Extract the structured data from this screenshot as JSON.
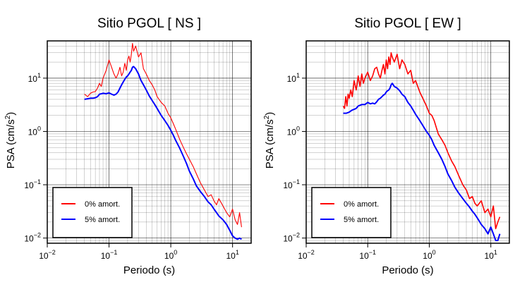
{
  "chart_data": [
    {
      "type": "line",
      "title": "Sitio PGOL [ NS ]",
      "xlabel": "Periodo (s)",
      "ylabel_main": "PSA (cm/s",
      "ylabel_sup": "2",
      "ylabel_end": ")",
      "x_scale": "log",
      "y_scale": "log",
      "xlim": [
        0.01,
        20
      ],
      "ylim": [
        0.008,
        50
      ],
      "grid": true,
      "legend_position": "bottom-left",
      "series": [
        {
          "name": "0% amort.",
          "color": "#ff0000",
          "x": [
            0.04,
            0.045,
            0.05,
            0.055,
            0.06,
            0.065,
            0.07,
            0.075,
            0.08,
            0.09,
            0.1,
            0.11,
            0.12,
            0.13,
            0.14,
            0.15,
            0.16,
            0.17,
            0.18,
            0.19,
            0.2,
            0.21,
            0.22,
            0.23,
            0.24,
            0.25,
            0.27,
            0.3,
            0.33,
            0.36,
            0.4,
            0.45,
            0.5,
            0.55,
            0.6,
            0.7,
            0.8,
            0.9,
            1.0,
            1.1,
            1.2,
            1.4,
            1.6,
            1.8,
            2.0,
            2.3,
            2.6,
            3.0,
            3.5,
            4.0,
            4.5,
            5.0,
            5.5,
            6.0,
            7.0,
            8.0,
            9.0,
            10,
            11,
            12,
            13,
            14
          ],
          "y": [
            5,
            4.5,
            5.2,
            5.5,
            5.6,
            6.5,
            8,
            7,
            10,
            14,
            22,
            16,
            12,
            10,
            12,
            16,
            11,
            13,
            19,
            14,
            22,
            26,
            20,
            28,
            45,
            32,
            40,
            25,
            30,
            15,
            12,
            9,
            7.5,
            6,
            4.5,
            3.5,
            3,
            2.2,
            1.8,
            1.4,
            1.1,
            0.7,
            0.5,
            0.38,
            0.3,
            0.22,
            0.16,
            0.11,
            0.08,
            0.06,
            0.065,
            0.05,
            0.042,
            0.055,
            0.04,
            0.03,
            0.025,
            0.035,
            0.022,
            0.018,
            0.03,
            0.016
          ]
        },
        {
          "name": "5% amort.",
          "color": "#0000ff",
          "x": [
            0.04,
            0.045,
            0.05,
            0.055,
            0.06,
            0.065,
            0.07,
            0.075,
            0.08,
            0.09,
            0.1,
            0.11,
            0.12,
            0.13,
            0.14,
            0.15,
            0.16,
            0.17,
            0.18,
            0.19,
            0.2,
            0.21,
            0.22,
            0.23,
            0.24,
            0.25,
            0.27,
            0.3,
            0.33,
            0.36,
            0.4,
            0.45,
            0.5,
            0.55,
            0.6,
            0.7,
            0.8,
            0.9,
            1.0,
            1.1,
            1.2,
            1.4,
            1.6,
            1.8,
            2.0,
            2.3,
            2.6,
            3.0,
            3.5,
            4.0,
            4.5,
            5.0,
            5.5,
            6.0,
            7.0,
            8.0,
            9.0,
            10,
            11,
            12,
            13,
            14
          ],
          "y": [
            4,
            4.1,
            4.2,
            4.2,
            4.3,
            4.5,
            5,
            5.1,
            5.2,
            5.1,
            5.3,
            5,
            4.8,
            5,
            5.5,
            6.5,
            7.5,
            8.5,
            9.5,
            10.5,
            11,
            12,
            13,
            14,
            16,
            16.5,
            15,
            12,
            9,
            7.5,
            6,
            4.6,
            3.8,
            3.2,
            2.7,
            2,
            1.6,
            1.3,
            1.05,
            0.85,
            0.68,
            0.48,
            0.34,
            0.25,
            0.18,
            0.13,
            0.095,
            0.075,
            0.06,
            0.048,
            0.042,
            0.035,
            0.03,
            0.026,
            0.022,
            0.018,
            0.014,
            0.011,
            0.01,
            0.0095,
            0.01,
            0.0095
          ]
        }
      ]
    },
    {
      "type": "line",
      "title": "Sitio PGOL [ EW ]",
      "xlabel": "Periodo (s)",
      "ylabel_main": "PSA (cm/s",
      "ylabel_sup": "2",
      "ylabel_end": ")",
      "x_scale": "log",
      "y_scale": "log",
      "xlim": [
        0.01,
        20
      ],
      "ylim": [
        0.008,
        50
      ],
      "grid": true,
      "legend_position": "bottom-left",
      "series": [
        {
          "name": "0% amort.",
          "color": "#ff0000",
          "x": [
            0.04,
            0.042,
            0.044,
            0.046,
            0.048,
            0.05,
            0.053,
            0.056,
            0.06,
            0.065,
            0.07,
            0.075,
            0.08,
            0.085,
            0.09,
            0.1,
            0.11,
            0.12,
            0.13,
            0.14,
            0.15,
            0.16,
            0.17,
            0.18,
            0.19,
            0.2,
            0.21,
            0.22,
            0.23,
            0.24,
            0.25,
            0.27,
            0.3,
            0.33,
            0.36,
            0.4,
            0.45,
            0.5,
            0.55,
            0.6,
            0.7,
            0.8,
            0.9,
            1.0,
            1.1,
            1.2,
            1.4,
            1.6,
            1.8,
            2.0,
            2.3,
            2.6,
            3.0,
            3.5,
            4.0,
            4.5,
            5.0,
            5.5,
            6.0,
            7.0,
            8.0,
            9.0,
            10,
            11,
            12,
            13,
            14
          ],
          "y": [
            3,
            2.7,
            4.5,
            3,
            5,
            4.2,
            6,
            4.5,
            9,
            6,
            11,
            7,
            12,
            8,
            10,
            13,
            9,
            11,
            15,
            16,
            12,
            10,
            14,
            18,
            12,
            22,
            15,
            25,
            18,
            30,
            25,
            20,
            28,
            15,
            22,
            18,
            12,
            14,
            8,
            9,
            5.5,
            4,
            3,
            2.2,
            2,
            1.6,
            0.9,
            0.7,
            0.55,
            0.4,
            0.28,
            0.22,
            0.15,
            0.1,
            0.08,
            0.055,
            0.06,
            0.045,
            0.04,
            0.05,
            0.03,
            0.035,
            0.025,
            0.04,
            0.015,
            0.02,
            0.025
          ]
        },
        {
          "name": "5% amort.",
          "color": "#0000ff",
          "x": [
            0.04,
            0.045,
            0.05,
            0.055,
            0.06,
            0.065,
            0.07,
            0.075,
            0.08,
            0.09,
            0.1,
            0.11,
            0.12,
            0.13,
            0.14,
            0.15,
            0.16,
            0.17,
            0.18,
            0.19,
            0.2,
            0.21,
            0.22,
            0.23,
            0.24,
            0.25,
            0.27,
            0.3,
            0.33,
            0.36,
            0.4,
            0.45,
            0.5,
            0.55,
            0.6,
            0.7,
            0.8,
            0.9,
            1.0,
            1.1,
            1.2,
            1.4,
            1.6,
            1.8,
            2.0,
            2.3,
            2.6,
            3.0,
            3.5,
            4.0,
            4.5,
            5.0,
            5.5,
            6.0,
            7.0,
            8.0,
            9.0,
            10,
            11,
            12,
            13,
            14
          ],
          "y": [
            2.2,
            2.2,
            2.3,
            2.5,
            2.6,
            2.7,
            3,
            3.1,
            3.2,
            3.2,
            3.5,
            3.3,
            3.4,
            3.3,
            3.6,
            4,
            4.2,
            4.5,
            4.8,
            5,
            5.5,
            5.8,
            6,
            6.5,
            7.5,
            8,
            7,
            6.5,
            5.8,
            5,
            4.5,
            3.5,
            3,
            2.5,
            2.1,
            1.6,
            1.25,
            1.0,
            0.85,
            0.7,
            0.55,
            0.4,
            0.3,
            0.22,
            0.16,
            0.12,
            0.09,
            0.07,
            0.055,
            0.045,
            0.038,
            0.032,
            0.028,
            0.024,
            0.018,
            0.015,
            0.012,
            0.016,
            0.012,
            0.009,
            0.009,
            0.012
          ]
        }
      ]
    }
  ]
}
